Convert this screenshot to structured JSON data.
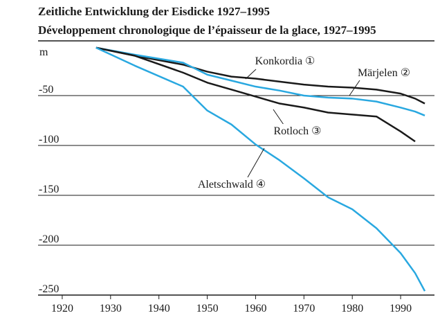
{
  "chart_data": {
    "type": "line",
    "title": "Zeitliche Entwicklung der Eisdicke 1927–1995",
    "subtitle": "Développement chronologique de l’épaisseur de la glace, 1927–1995",
    "y_label": "m",
    "x": [
      1927,
      1935,
      1945,
      1950,
      1955,
      1960,
      1965,
      1970,
      1975,
      1980,
      1985,
      1990,
      1993,
      1995
    ],
    "series": [
      {
        "name": "Konkordia ①",
        "color": "#1a1a1a",
        "values": [
          -2,
          -10,
          -19,
          -26,
          -31,
          -33,
          -36,
          -39,
          -41,
          -42,
          -44,
          -48,
          -53,
          -58
        ]
      },
      {
        "name": "Märjelen ②",
        "color": "#29a8e0",
        "values": [
          -2,
          -9,
          -17,
          -29,
          -35,
          -41,
          -45,
          -50,
          -52,
          -53,
          -56,
          -62,
          -66,
          -70
        ]
      },
      {
        "name": "Rotloch ③",
        "color": "#1a1a1a",
        "values": [
          -2,
          -10,
          -27,
          -37,
          -44,
          -51,
          -58,
          -62,
          -67,
          -69,
          -71,
          -86,
          -96,
          null
        ]
      },
      {
        "name": "Aletschwald ④",
        "color": "#29a8e0",
        "values": [
          -2,
          -20,
          -41,
          -65,
          -79,
          -99,
          -115,
          -133,
          -152,
          -164,
          -183,
          -208,
          -228,
          -246
        ]
      }
    ],
    "xlim": [
      1915,
      1997
    ],
    "xticks": [
      1920,
      1930,
      1940,
      1950,
      1960,
      1970,
      1980,
      1990
    ],
    "ylim": [
      -250,
      0
    ],
    "yticks": [
      -50,
      -100,
      -150,
      -200,
      -250
    ],
    "grid": true
  }
}
